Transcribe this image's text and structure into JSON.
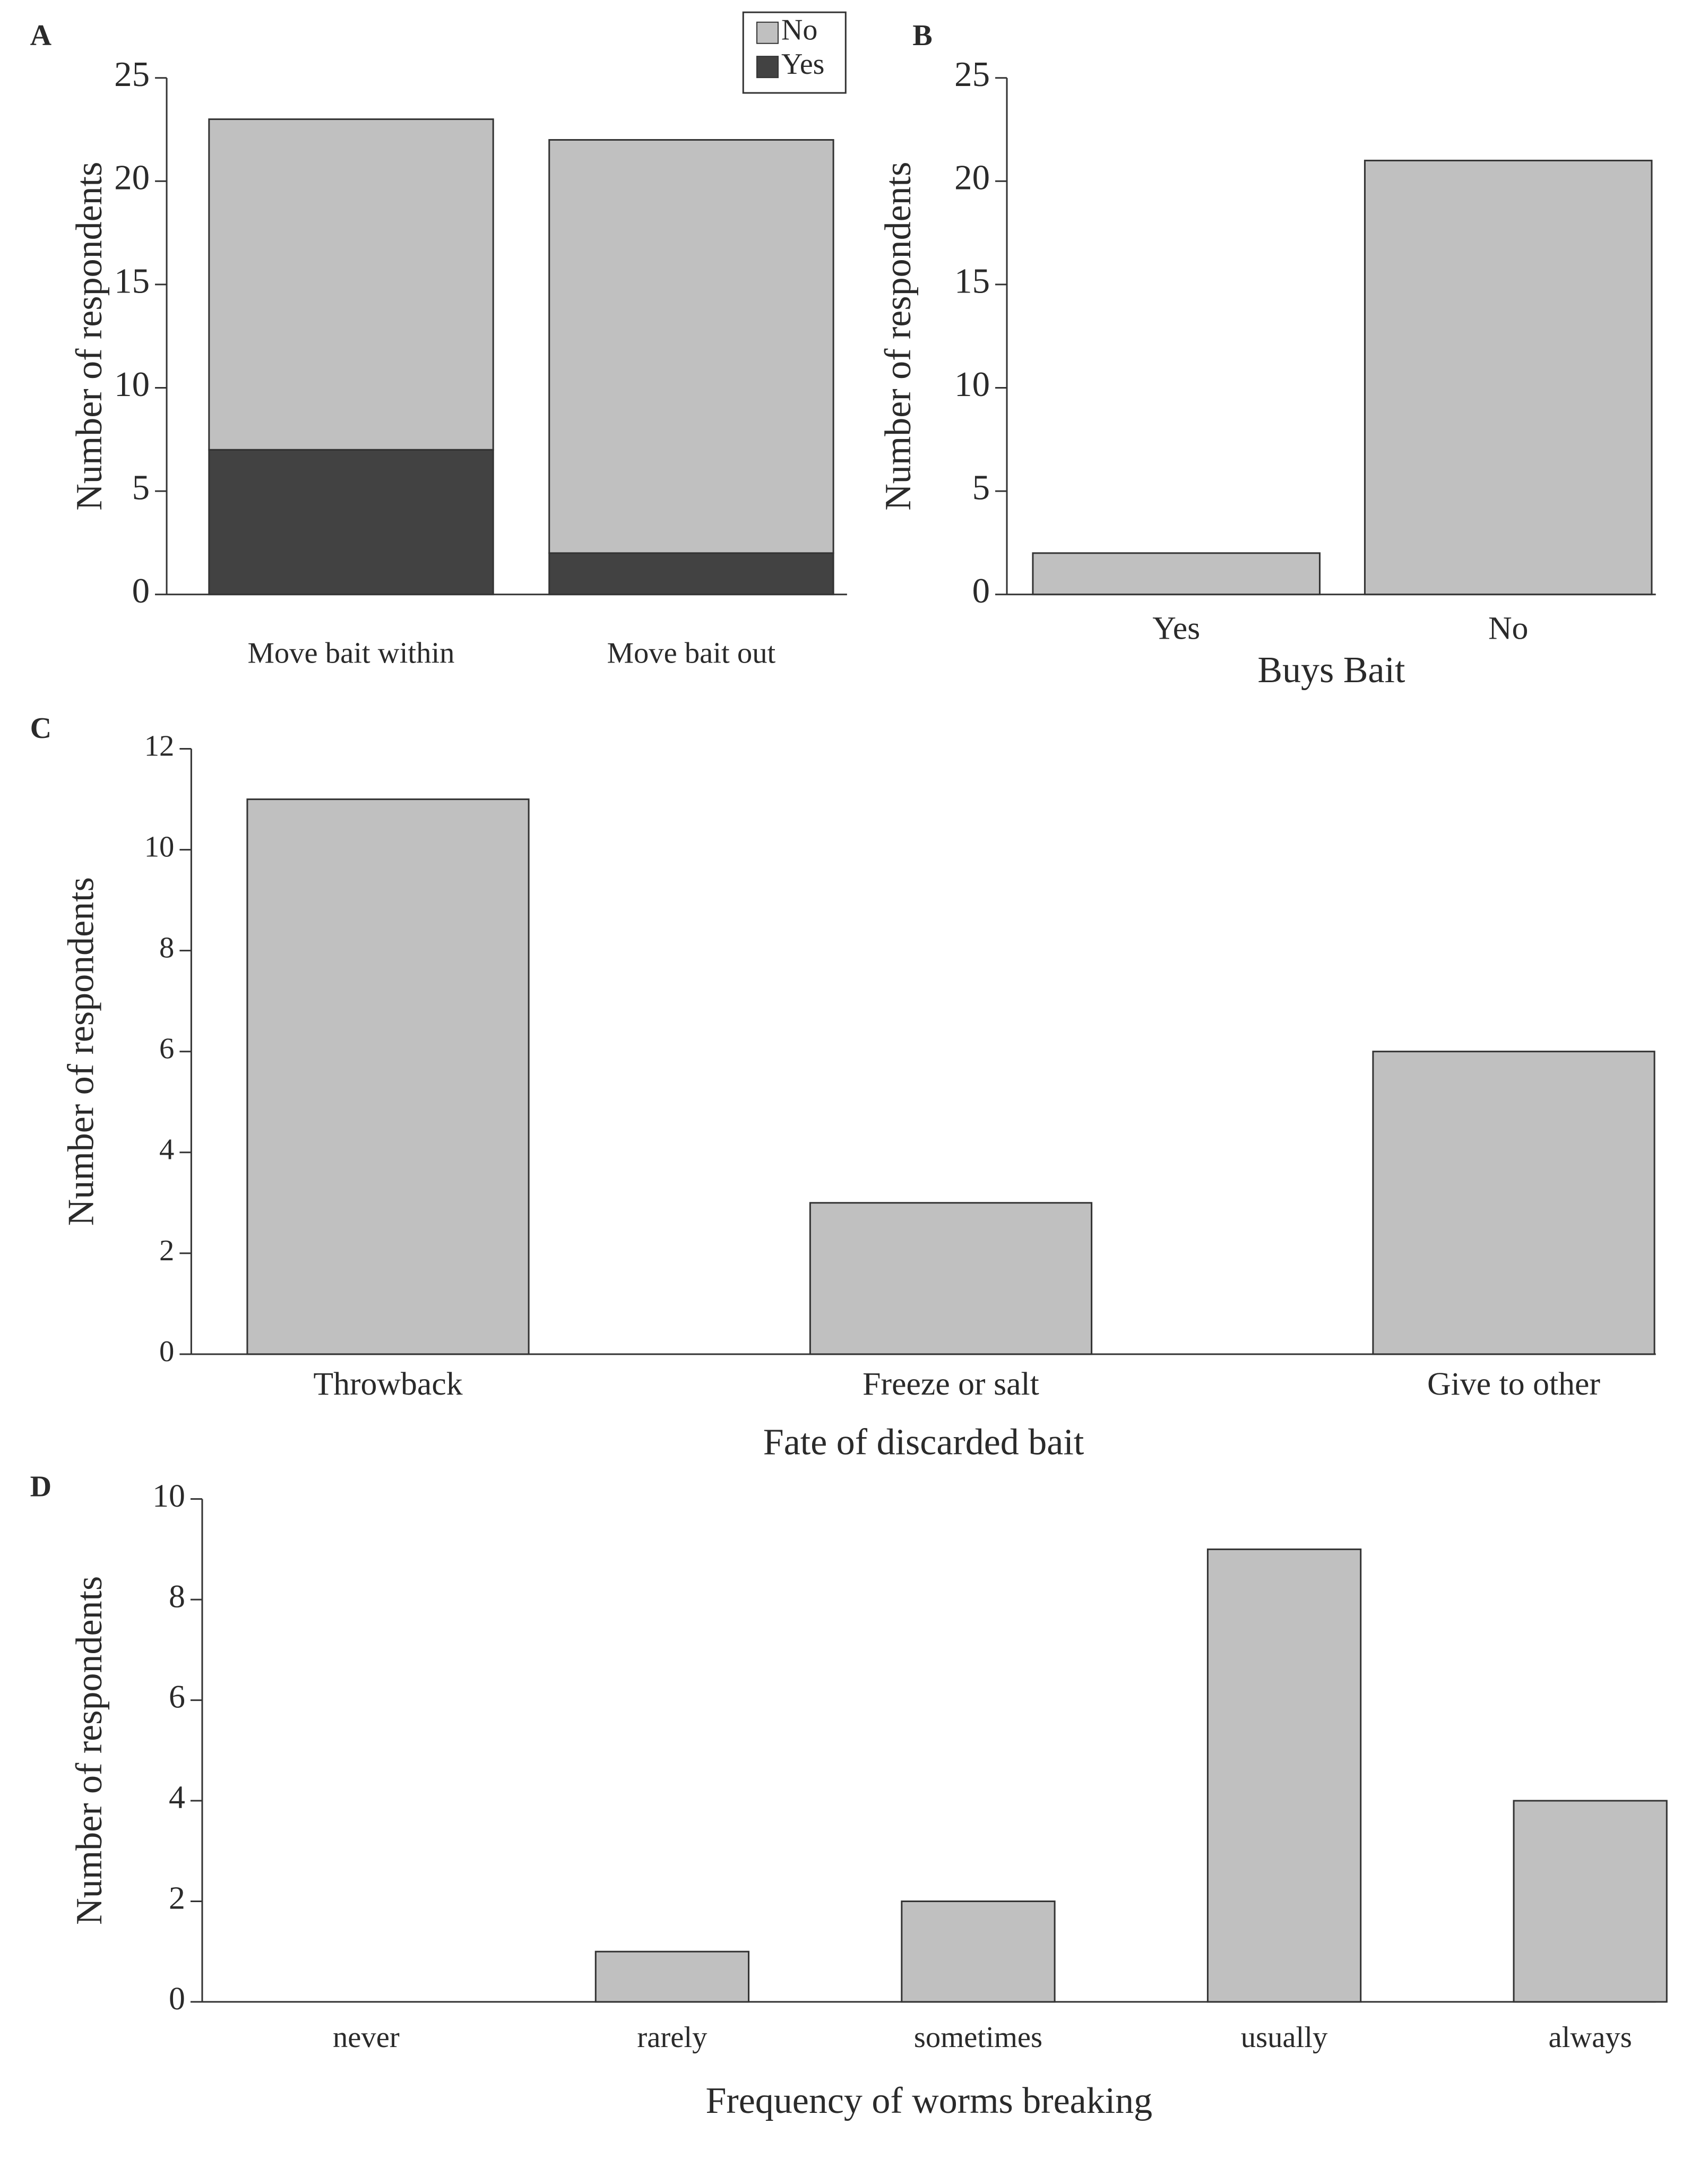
{
  "chart_data": [
    {
      "type": "stacked_bar",
      "panel_label": "A",
      "ylabel": "Number of respondents",
      "categories": [
        "Move bait within",
        "Move bait out"
      ],
      "series": [
        {
          "name": "Yes",
          "color": "#424242",
          "values": [
            7,
            2
          ]
        },
        {
          "name": "No",
          "color": "#c0c0c0",
          "values": [
            16,
            20
          ]
        }
      ],
      "ylim": [
        0,
        25
      ],
      "yticks": [
        0,
        5,
        10,
        15,
        20,
        25
      ]
    },
    {
      "type": "bar",
      "panel_label": "B",
      "ylabel": "Number of respondents",
      "xlabel": "Buys Bait",
      "categories": [
        "Yes",
        "No"
      ],
      "values": [
        2,
        21
      ],
      "color": "#c0c0c0",
      "ylim": [
        0,
        25
      ],
      "yticks": [
        0,
        5,
        10,
        15,
        20,
        25
      ]
    },
    {
      "type": "bar",
      "panel_label": "C",
      "ylabel": "Number of respondents",
      "xlabel": "Fate of discarded bait",
      "categories": [
        "Throwback",
        "Freeze or salt",
        "Give to other"
      ],
      "values": [
        11,
        3,
        6
      ],
      "color": "#c0c0c0",
      "ylim": [
        0,
        12
      ],
      "yticks": [
        0,
        2,
        4,
        6,
        8,
        10,
        12
      ]
    },
    {
      "type": "bar",
      "panel_label": "D",
      "ylabel": "Number of respondents",
      "xlabel": "Frequency of worms breaking",
      "categories": [
        "never",
        "rarely",
        "sometimes",
        "usually",
        "always"
      ],
      "values": [
        0,
        1,
        2,
        9,
        4
      ],
      "color": "#c0c0c0",
      "ylim": [
        0,
        10
      ],
      "yticks": [
        0,
        2,
        4,
        6,
        8,
        10
      ]
    }
  ]
}
